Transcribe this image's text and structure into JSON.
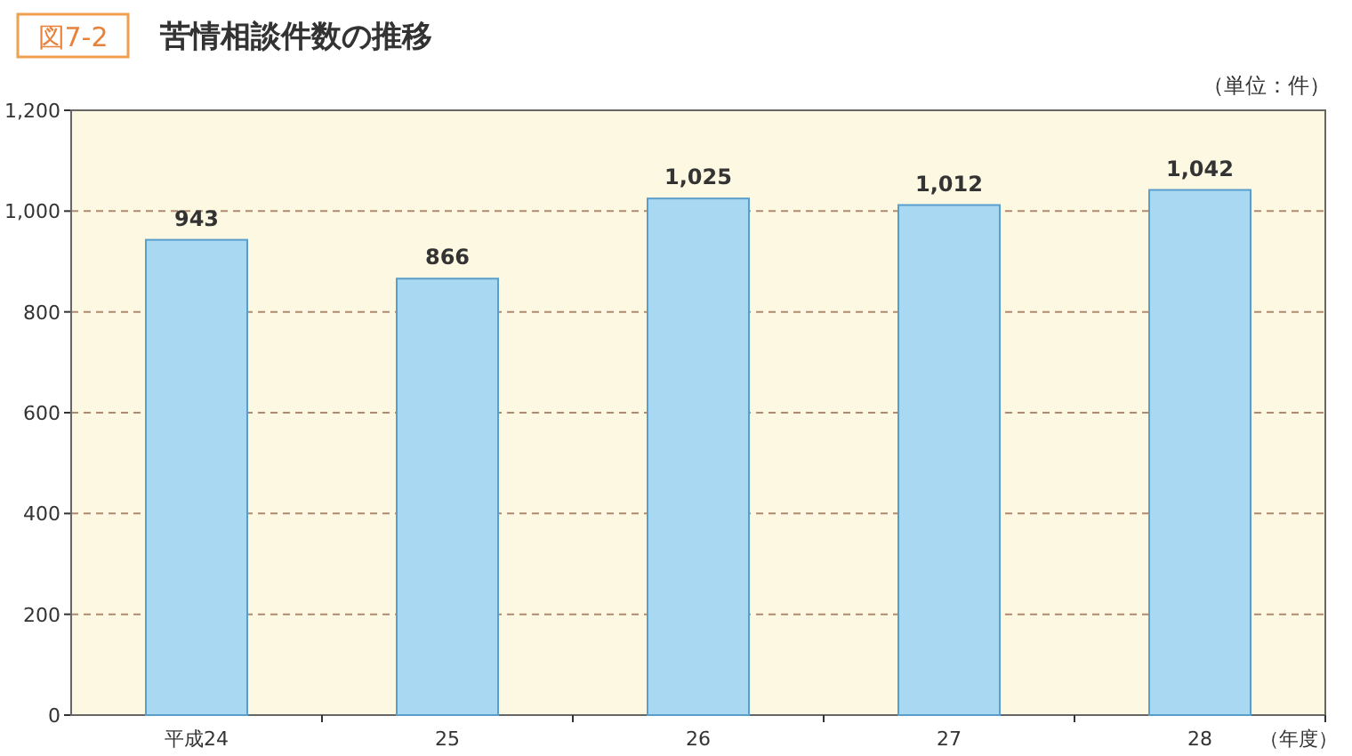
{
  "chart_data": {
    "type": "bar",
    "title": "苦情相談件数の推移",
    "annotations": [
      "図7-2"
    ],
    "ylabel": "（単位：件）",
    "xlabel": "（年度）",
    "categories": [
      "平成24",
      "25",
      "26",
      "27",
      "28"
    ],
    "values": [
      943,
      866,
      1025,
      1012,
      1042
    ],
    "value_labels": [
      "943",
      "866",
      "1,025",
      "1,012",
      "1,042"
    ],
    "color": "#a9d9f2",
    "ylim": [
      0,
      1200
    ],
    "yticks": [
      0,
      200,
      400,
      600,
      800,
      {
        "value": 1000,
        "label": "1,000"
      },
      {
        "value": 1200,
        "label": "1,200"
      }
    ],
    "grid": "y"
  }
}
